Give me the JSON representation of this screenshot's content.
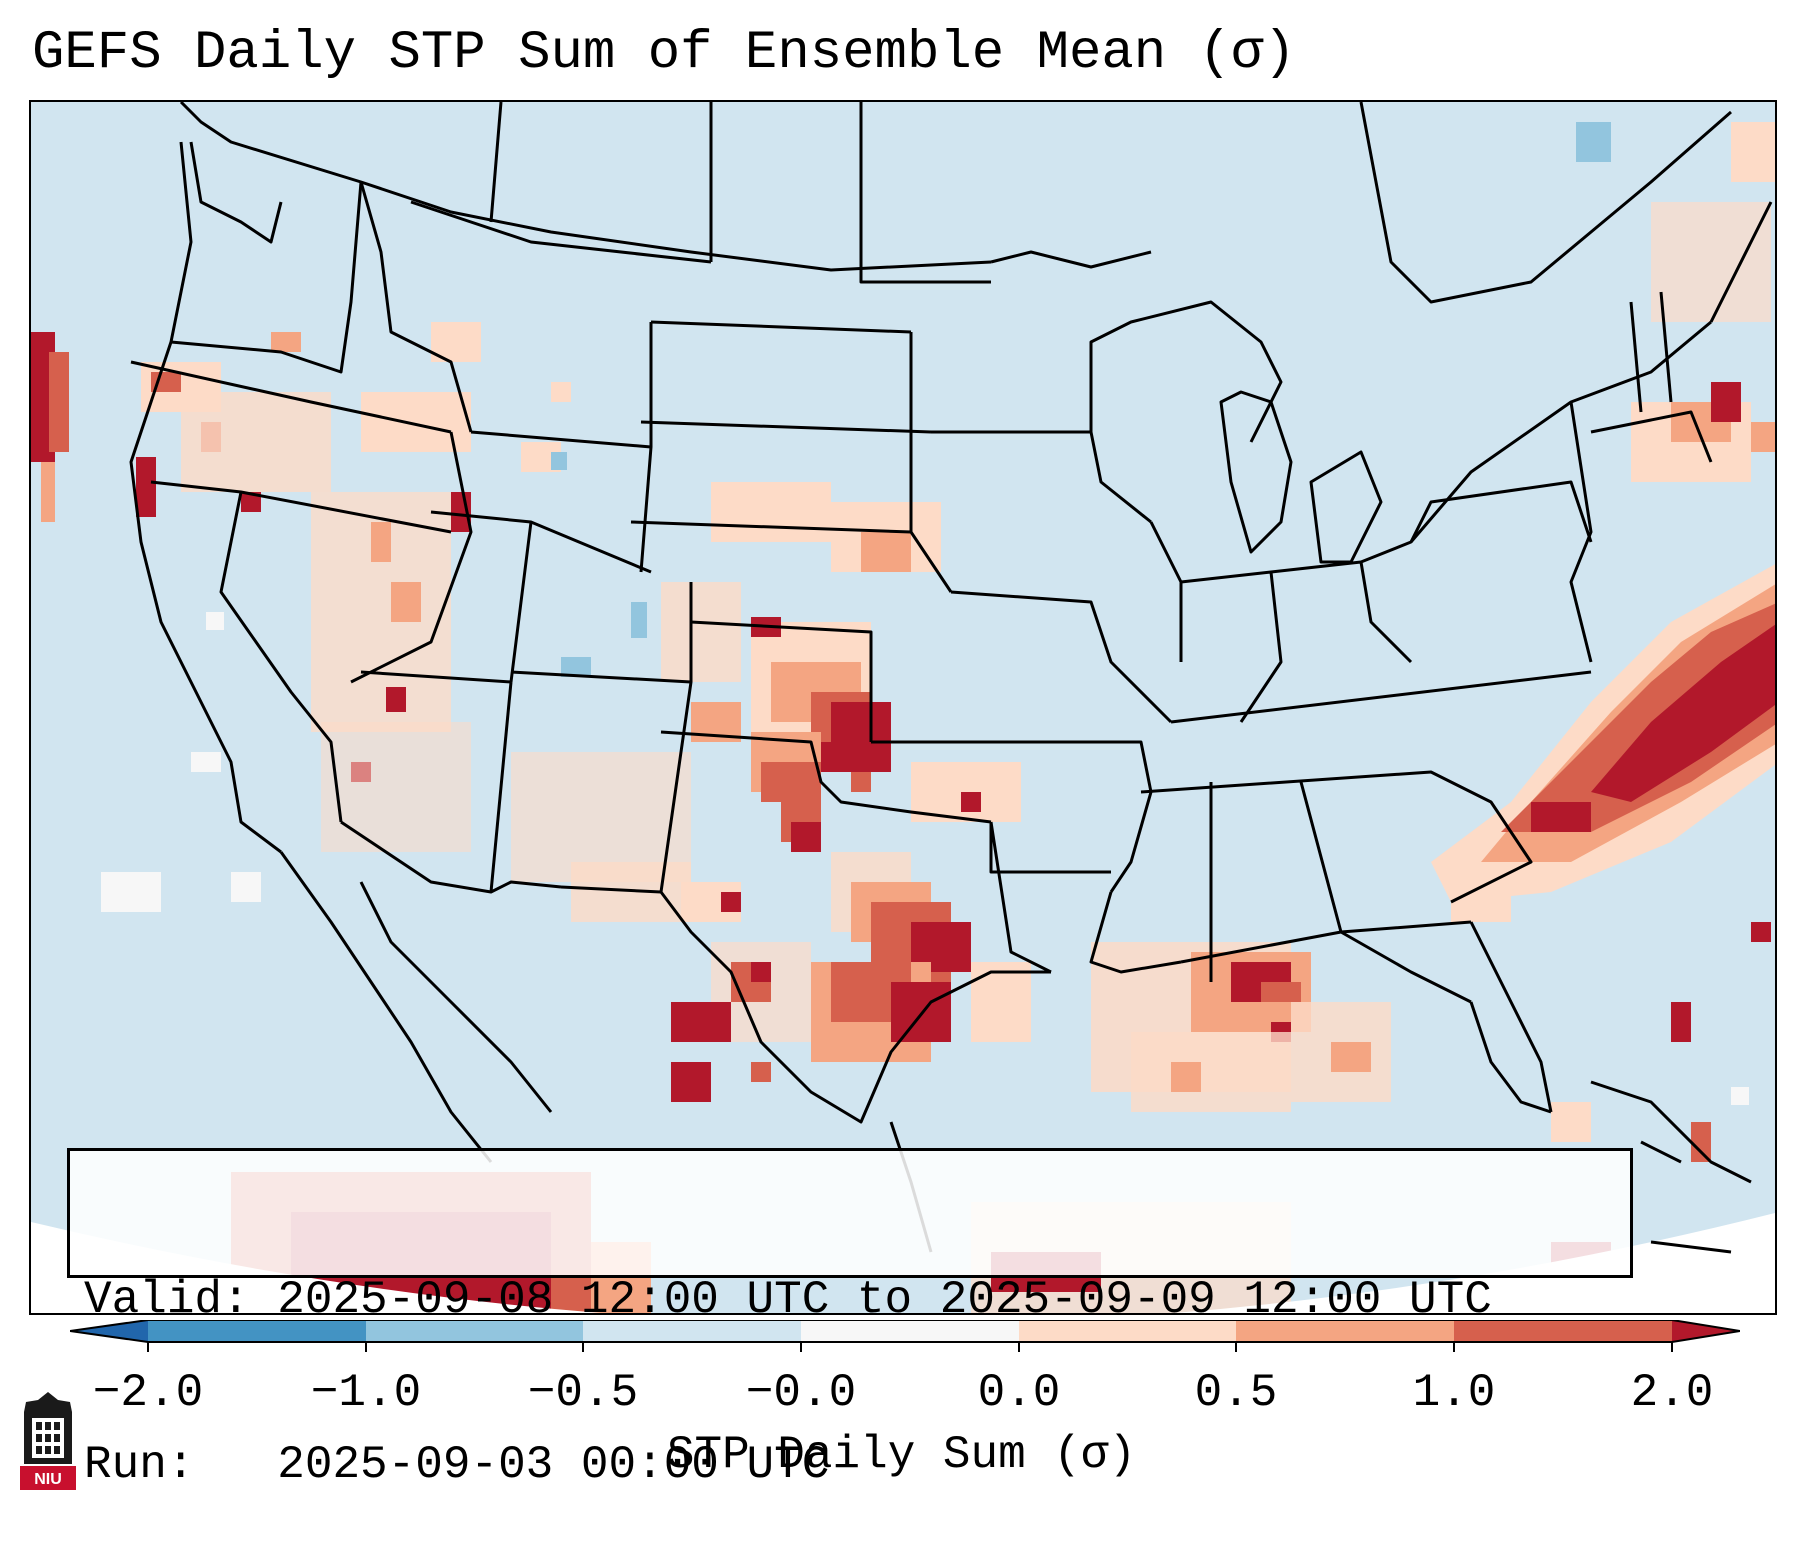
{
  "title": "GEFS Daily STP Sum of Ensemble Mean (σ)",
  "info": {
    "valid_line": "Valid: 2025-09-08 12:00 UTC to 2025-09-09 12:00 UTC",
    "run_line": "Run:   2025-09-03 00:00 UTC"
  },
  "colorbar": {
    "label": "STP Daily Sum (σ)",
    "ticks": [
      "−2.0",
      "−1.0",
      "−0.5",
      "−0.0",
      "0.0",
      "0.5",
      "1.0",
      "2.0"
    ],
    "bin_colors": [
      "#2166ac",
      "#4393c3",
      "#92c5de",
      "#d1e5f0",
      "#f7f7f7",
      "#fddbc7",
      "#f4a582",
      "#d6604d",
      "#b2182b"
    ],
    "colors": {
      "map_background": "#d1e5f0",
      "high_anomaly": "#b2182b",
      "low_anomaly": "#2166ac"
    }
  },
  "logo": {
    "text": "NIU"
  }
}
